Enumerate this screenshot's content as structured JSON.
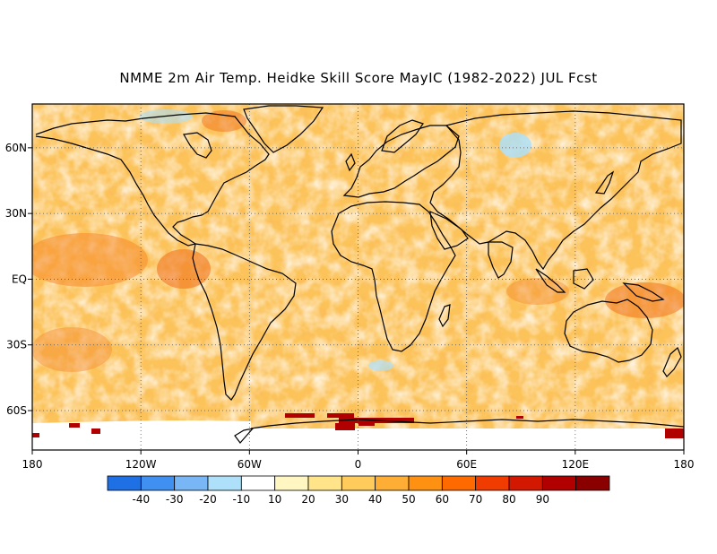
{
  "title": "NMME 2m Air Temp. Heidke Skill Score MayIC (1982-2022) JUL Fcst",
  "map": {
    "projection": "equirectangular",
    "lon_range": [
      -180,
      180
    ],
    "lat_range": [
      -78,
      80
    ],
    "x_ticks": [
      {
        "lon": -180,
        "label": "180"
      },
      {
        "lon": -120,
        "label": "120W"
      },
      {
        "lon": -60,
        "label": "60W"
      },
      {
        "lon": 0,
        "label": "0"
      },
      {
        "lon": 60,
        "label": "60E"
      },
      {
        "lon": 120,
        "label": "120E"
      },
      {
        "lon": 180,
        "label": "180"
      }
    ],
    "y_ticks": [
      {
        "lat": 60,
        "label": "60N"
      },
      {
        "lat": 30,
        "label": "30N"
      },
      {
        "lat": 0,
        "label": "EQ"
      },
      {
        "lat": -30,
        "label": "30S"
      },
      {
        "lat": -60,
        "label": "60S"
      }
    ],
    "grid": "dotted",
    "dominant_field_color": "#fcc35a"
  },
  "colorbar": {
    "bins": [
      {
        "color": "#1f6fe5"
      },
      {
        "color": "#3f90f0"
      },
      {
        "color": "#78b6f5"
      },
      {
        "color": "#aee0f9"
      },
      {
        "color": "#ffffff"
      },
      {
        "color": "#fff6c2"
      },
      {
        "color": "#ffe48a"
      },
      {
        "color": "#ffcb5a"
      },
      {
        "color": "#ffae35"
      },
      {
        "color": "#ff9112"
      },
      {
        "color": "#ff6a00"
      },
      {
        "color": "#f03c00"
      },
      {
        "color": "#d21800"
      },
      {
        "color": "#b00000"
      },
      {
        "color": "#8a0000"
      }
    ],
    "labels": [
      "-40",
      "-30",
      "-20",
      "-10",
      "10",
      "20",
      "30",
      "40",
      "50",
      "60",
      "70",
      "80",
      "90"
    ]
  }
}
